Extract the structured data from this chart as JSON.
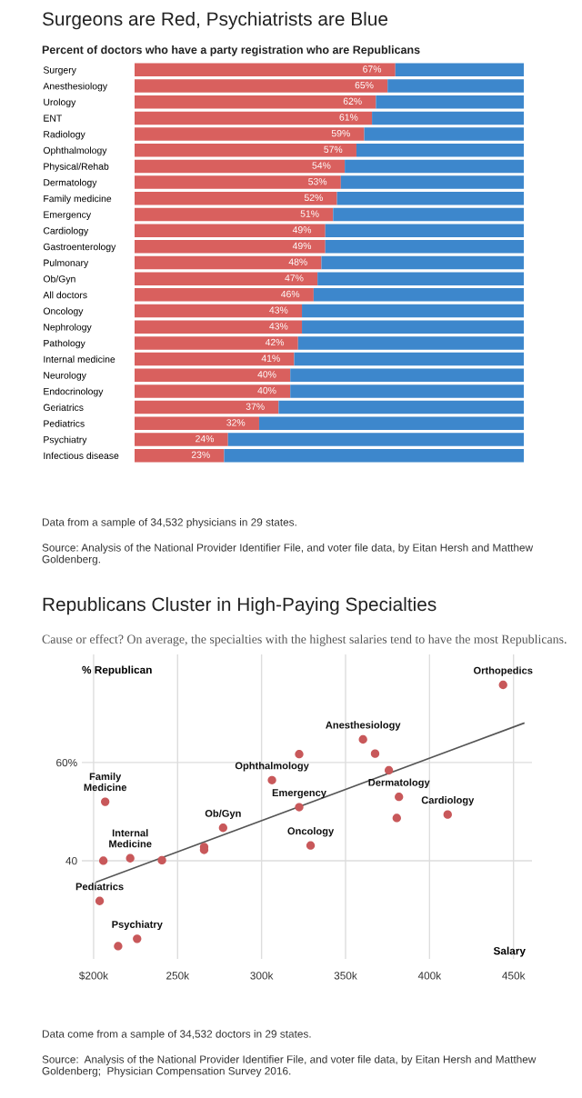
{
  "chart_data": [
    {
      "type": "bar",
      "orientation": "horizontal",
      "stacked": true,
      "title": "Surgeons are Red, Psychiatrists are Blue",
      "subtitle": "Percent of doctors who have a party registration who are Republicans",
      "categories": [
        "Surgery",
        "Anesthesiology",
        "Urology",
        "ENT",
        "Radiology",
        "Ophthalmology",
        "Physical/Rehab",
        "Dermatology",
        "Family medicine",
        "Emergency",
        "Cardiology",
        "Gastroenterology",
        "Pulmonary",
        "Ob/Gyn",
        "All doctors",
        "Oncology",
        "Nephrology",
        "Pathology",
        "Internal medicine",
        "Neurology",
        "Endocrinology",
        "Geriatrics",
        "Pediatrics",
        "Psychiatry",
        "Infectious disease"
      ],
      "series": [
        {
          "color": "#d9605e",
          "values": [
            67,
            65,
            62,
            61,
            59,
            57,
            54,
            53,
            52,
            51,
            49,
            49,
            48,
            47,
            46,
            43,
            43,
            42,
            41,
            40,
            40,
            37,
            32,
            24,
            23
          ],
          "value_labels": [
            "67%",
            "65%",
            "62%",
            "61%",
            "59%",
            "57%",
            "54%",
            "53%",
            "52%",
            "51%",
            "49%",
            "49%",
            "48%",
            "47%",
            "46%",
            "43%",
            "43%",
            "42%",
            "41%",
            "40%",
            "40%",
            "37%",
            "32%",
            "24%",
            "23%"
          ]
        },
        {
          "color": "#3d87cc",
          "values": [
            33,
            35,
            38,
            39,
            41,
            43,
            46,
            47,
            48,
            49,
            51,
            51,
            52,
            53,
            54,
            57,
            57,
            58,
            59,
            60,
            60,
            63,
            68,
            76,
            77
          ]
        }
      ],
      "xlim": [
        0,
        100
      ],
      "tick_labels": "y",
      "grid": false,
      "legend": false,
      "annotations": [
        "Data from a sample of 34,532 physicians in 29 states.",
        "Source: Analysis of the National Provider Identifier File, and voter file data, by Eitan Hersh and Matthew Goldenberg."
      ]
    },
    {
      "type": "scatter",
      "title": "Republicans Cluster in High-Paying Specialties",
      "subtitle": "Cause or effect? On average, the specialties with the highest salaries tend to have the most Republicans.",
      "xlabel": "Salary",
      "ylabel": "% Republican",
      "series": [
        {
          "color": "#c8585a",
          "marker": "circle",
          "x": [
            206.9,
            205.8,
            221.8,
            240.7,
            265.8,
            265.8,
            277.1,
            306.2,
            322.4,
            322.4,
            203.6,
            225.9,
            214.6,
            443.8,
            360.4,
            367.6,
            375.8,
            381.8,
            380.5,
            410.8,
            329.2
          ],
          "values": [
            52.0,
            40.0,
            40.5,
            40.1,
            42.8,
            42.2,
            46.7,
            56.4,
            61.7,
            50.9,
            31.8,
            24.1,
            22.6,
            75.8,
            64.7,
            61.8,
            58.4,
            53.0,
            48.7,
            49.4,
            43.1
          ]
        },
        {
          "type": "line",
          "color": "#555555",
          "x": [
            201.8,
            456.1
          ],
          "values": [
            35.7,
            68.0
          ]
        }
      ],
      "xlim": [
        193,
        461
      ],
      "ylim": [
        20,
        82
      ],
      "xticks": [
        {
          "value": 200,
          "label": "$200k"
        },
        {
          "value": 250,
          "label": "250k"
        },
        {
          "value": 300,
          "label": "300k"
        },
        {
          "value": 350,
          "label": "350k"
        },
        {
          "value": 400,
          "label": "400k"
        },
        {
          "value": 450,
          "label": "450k"
        }
      ],
      "yticks": [
        40,
        {
          "value": 60,
          "label": "60%"
        }
      ],
      "grid": true,
      "legend": false,
      "annotations": [
        {
          "text": "Family\nMedicine",
          "x": 206.9,
          "y": 52.0
        },
        {
          "text": "Internal\nMedicine",
          "x": 221.8,
          "y": 40.5
        },
        {
          "text": "Ob/Gyn",
          "x": 277.1,
          "y": 46.7
        },
        {
          "text": "Ophthalmology",
          "x": 306.2,
          "y": 56.4
        },
        {
          "text": "Emergency",
          "x": 322.4,
          "y": 50.9
        },
        {
          "text": "Pediatrics",
          "x": 203.6,
          "y": 31.8
        },
        {
          "text": "Psychiatry",
          "x": 225.9,
          "y": 24.1
        },
        {
          "text": "Orthopedics",
          "x": 443.8,
          "y": 75.8
        },
        {
          "text": "Anesthesiology",
          "x": 360.4,
          "y": 64.7
        },
        {
          "text": "Dermatology",
          "x": 381.8,
          "y": 53.0
        },
        {
          "text": "Cardiology",
          "x": 410.8,
          "y": 49.4
        },
        {
          "text": "Oncology",
          "x": 329.2,
          "y": 43.1
        },
        "Data come from a sample of 34,532 doctors in 29 states.",
        "Source:  Analysis of the National Provider Identifier File, and voter file data, by Eitan Hersh and Matthew Goldenberg;  Physician Compensation Survey 2016."
      ]
    }
  ]
}
